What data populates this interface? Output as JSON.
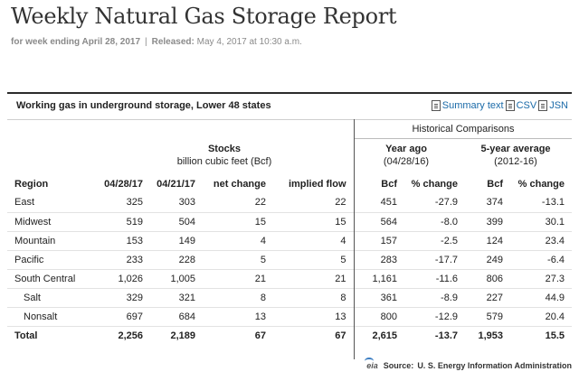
{
  "header": {
    "title": "Weekly Natural Gas Storage Report",
    "week_label": "for week ending April 28, 2017",
    "released_label": "Released:",
    "released_value": "May 4, 2017 at 10:30 a.m."
  },
  "panel": {
    "caption": "Working gas in underground storage, Lower 48 states",
    "links": [
      {
        "label": "Summary text",
        "icon": "document-icon"
      },
      {
        "label": "CSV",
        "icon": "document-icon"
      },
      {
        "label": "JSN",
        "icon": "document-icon"
      }
    ],
    "historical_title": "Historical Comparisons",
    "groups": {
      "stocks_title": "Stocks",
      "stocks_sub": "billion cubic feet (Bcf)",
      "year_ago_title": "Year ago",
      "year_ago_sub": "(04/28/16)",
      "five_year_title": "5-year average",
      "five_year_sub": "(2012-16)"
    }
  },
  "table": {
    "columns": [
      "Region",
      "04/28/17",
      "04/21/17",
      "net change",
      "implied flow",
      "Bcf",
      "% change",
      "Bcf",
      "% change"
    ],
    "rows": [
      [
        "East",
        "325",
        "303",
        "22",
        "22",
        "451",
        "-27.9",
        "374",
        "-13.1"
      ],
      [
        "Midwest",
        "519",
        "504",
        "15",
        "15",
        "564",
        "-8.0",
        "399",
        "30.1"
      ],
      [
        "Mountain",
        "153",
        "149",
        "4",
        "4",
        "157",
        "-2.5",
        "124",
        "23.4"
      ],
      [
        "Pacific",
        "233",
        "228",
        "5",
        "5",
        "283",
        "-17.7",
        "249",
        "-6.4"
      ],
      [
        "South Central",
        "1,026",
        "1,005",
        "21",
        "21",
        "1,161",
        "-11.6",
        "806",
        "27.3"
      ],
      [
        "Salt",
        "329",
        "321",
        "8",
        "8",
        "361",
        "-8.9",
        "227",
        "44.9"
      ],
      [
        "Nonsalt",
        "697",
        "684",
        "13",
        "13",
        "800",
        "-12.9",
        "579",
        "20.4"
      ],
      [
        "Total",
        "2,256",
        "2,189",
        "67",
        "67",
        "2,615",
        "-13.7",
        "1,953",
        "15.5"
      ]
    ]
  },
  "source": {
    "logo": "eia",
    "label": "Source:",
    "value": "U. S. Energy Information Administration"
  }
}
